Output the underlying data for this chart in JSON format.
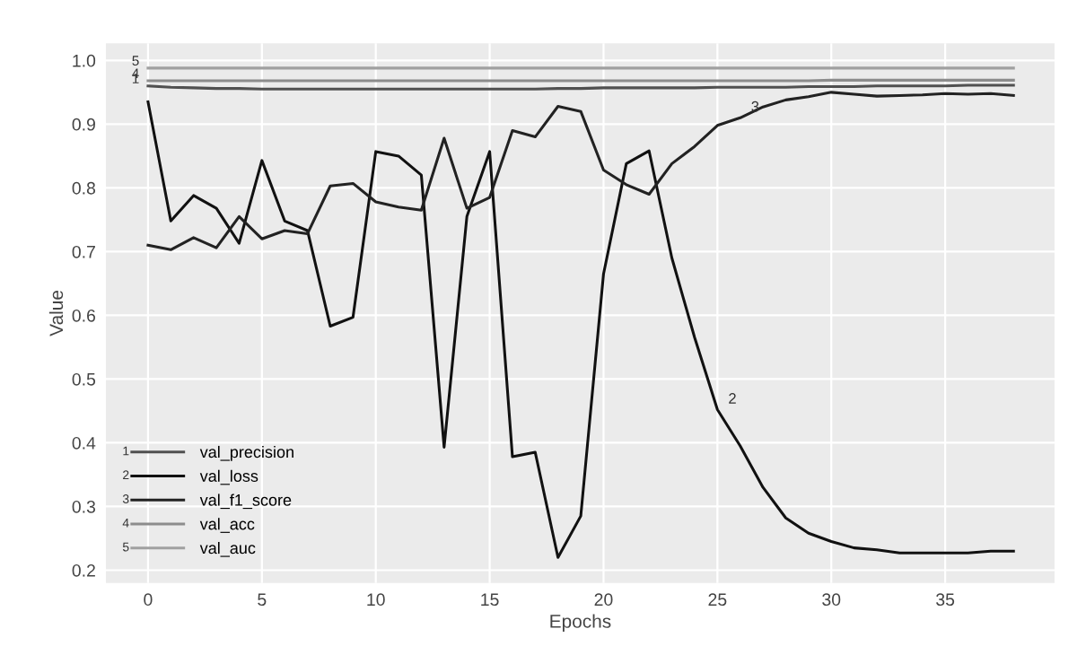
{
  "chart_data": {
    "type": "line",
    "xlabel": "Epochs",
    "ylabel": "Value",
    "x": [
      0,
      1,
      2,
      3,
      4,
      5,
      6,
      7,
      8,
      9,
      10,
      11,
      12,
      13,
      14,
      15,
      16,
      17,
      18,
      19,
      20,
      21,
      22,
      23,
      24,
      25,
      26,
      27,
      28,
      29,
      30,
      31,
      32,
      33,
      34,
      35,
      36,
      37,
      38
    ],
    "series": [
      {
        "name": "val_precision",
        "color": "#505050",
        "values": [
          0.96,
          0.958,
          0.957,
          0.956,
          0.956,
          0.955,
          0.955,
          0.955,
          0.955,
          0.955,
          0.955,
          0.955,
          0.955,
          0.955,
          0.955,
          0.955,
          0.955,
          0.955,
          0.956,
          0.956,
          0.957,
          0.957,
          0.957,
          0.957,
          0.957,
          0.958,
          0.958,
          0.958,
          0.958,
          0.959,
          0.959,
          0.959,
          0.96,
          0.96,
          0.96,
          0.96,
          0.961,
          0.961,
          0.961
        ]
      },
      {
        "name": "val_loss",
        "color": "#111111",
        "values": [
          0.935,
          0.748,
          0.788,
          0.768,
          0.713,
          0.843,
          0.748,
          0.733,
          0.583,
          0.597,
          0.857,
          0.85,
          0.82,
          0.393,
          0.755,
          0.857,
          0.378,
          0.385,
          0.22,
          0.285,
          0.665,
          0.838,
          0.858,
          0.69,
          0.565,
          0.452,
          0.395,
          0.33,
          0.282,
          0.258,
          0.245,
          0.235,
          0.232,
          0.227,
          0.227,
          0.227,
          0.227,
          0.23,
          0.23
        ]
      },
      {
        "name": "val_f1_score",
        "color": "#222222",
        "values": [
          0.71,
          0.703,
          0.722,
          0.706,
          0.755,
          0.72,
          0.733,
          0.728,
          0.803,
          0.807,
          0.778,
          0.77,
          0.765,
          0.878,
          0.768,
          0.785,
          0.89,
          0.88,
          0.928,
          0.92,
          0.828,
          0.805,
          0.79,
          0.838,
          0.865,
          0.898,
          0.91,
          0.927,
          0.938,
          0.943,
          0.95,
          0.947,
          0.944,
          0.945,
          0.946,
          0.948,
          0.947,
          0.948,
          0.945
        ]
      },
      {
        "name": "val_acc",
        "color": "#8c8c8c",
        "values": [
          0.968,
          0.968,
          0.968,
          0.968,
          0.968,
          0.968,
          0.968,
          0.968,
          0.968,
          0.968,
          0.968,
          0.968,
          0.968,
          0.968,
          0.968,
          0.968,
          0.968,
          0.968,
          0.968,
          0.968,
          0.968,
          0.968,
          0.968,
          0.968,
          0.968,
          0.968,
          0.968,
          0.968,
          0.968,
          0.968,
          0.969,
          0.969,
          0.969,
          0.969,
          0.969,
          0.969,
          0.969,
          0.969,
          0.969
        ]
      },
      {
        "name": "val_auc",
        "color": "#a0a0a0",
        "values": [
          0.988,
          0.988,
          0.988,
          0.988,
          0.988,
          0.988,
          0.988,
          0.988,
          0.988,
          0.988,
          0.988,
          0.988,
          0.988,
          0.988,
          0.988,
          0.988,
          0.988,
          0.988,
          0.988,
          0.988,
          0.988,
          0.988,
          0.988,
          0.988,
          0.988,
          0.988,
          0.988,
          0.988,
          0.988,
          0.988,
          0.988,
          0.988,
          0.988,
          0.988,
          0.988,
          0.988,
          0.988,
          0.988,
          0.988
        ]
      }
    ],
    "annotations": [
      {
        "text": "1",
        "x": 0,
        "y": 0.96
      },
      {
        "text": "2",
        "x": 25,
        "y": 0.452
      },
      {
        "text": "3",
        "x": 26,
        "y": 0.91
      },
      {
        "text": "4",
        "x": 0,
        "y": 0.968
      },
      {
        "text": "5",
        "x": 0,
        "y": 0.988
      }
    ],
    "xlim": [
      -1.85,
      39.8
    ],
    "ylim": [
      0.18,
      1.027
    ],
    "xticks": [
      0,
      5,
      10,
      15,
      20,
      25,
      30,
      35
    ],
    "yticks": [
      {
        "value": 0.2,
        "label": "0.2"
      },
      {
        "value": 0.3,
        "label": "0.3"
      },
      {
        "value": 0.4,
        "label": "0.4"
      },
      {
        "value": 0.5,
        "label": "0.5"
      },
      {
        "value": 0.6,
        "label": "0.6"
      },
      {
        "value": 0.7,
        "label": "0.7"
      },
      {
        "value": 0.8,
        "label": "0.8"
      },
      {
        "value": 0.9,
        "label": "0.9"
      },
      {
        "value": 1.0,
        "label": "1.0"
      }
    ],
    "grid": true,
    "legend": "bottom left"
  }
}
